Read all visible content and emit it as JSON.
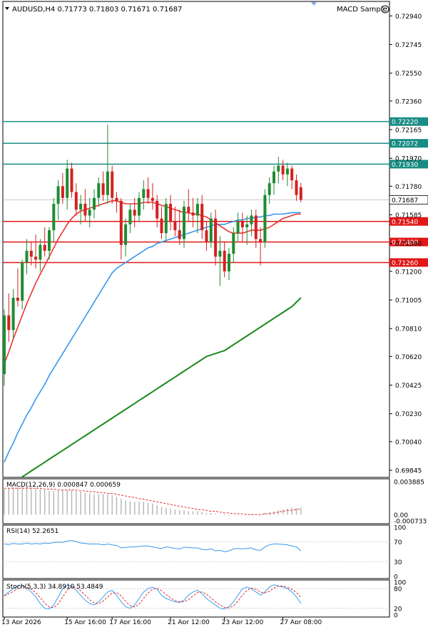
{
  "header": {
    "symbol_line": "AUDUSD,H4  0.71773 0.71803 0.71671 0.71687",
    "expert_label": "MACD Sample",
    "expert_icon": "smiley-face-icon"
  },
  "colors": {
    "bull": "#1e8c32",
    "bear": "#d42020",
    "ma_fast": "#ee3030",
    "ma_mid": "#3a96ee",
    "ma_slow": "#1a8a1a",
    "level_teal": "#198c84",
    "level_red": "#e01818",
    "grid": "#d8d8d8",
    "axis": "#000000",
    "macd_hist": "#b4b4b4",
    "macd_signal": "#e03030",
    "rsi_line": "#3a96ee",
    "stoch_main": "#3aa0ee",
    "stoch_signal": "#e03030"
  },
  "chart_data": [
    {
      "type": "candlestick",
      "title": "AUDUSD,H4",
      "ohlc_readout": [
        "0.71773",
        "0.71803",
        "0.71671",
        "0.71687"
      ],
      "ylim": [
        0.69845,
        0.7299
      ],
      "y_ticks": [
        "0.72940",
        "0.72745",
        "0.72550",
        "0.72360",
        "0.72165",
        "0.71970",
        "0.71780",
        "0.71585",
        "0.71390",
        "0.71200",
        "0.71005",
        "0.70810",
        "0.70620",
        "0.70425",
        "0.70230",
        "0.70040",
        "0.69845"
      ],
      "price_levels": [
        {
          "label": "0.72220",
          "value": 0.7222,
          "color": "teal"
        },
        {
          "label": "0.72072",
          "value": 0.72072,
          "color": "teal"
        },
        {
          "label": "0.71930",
          "value": 0.7193,
          "color": "teal"
        },
        {
          "label": "0.71540",
          "value": 0.7154,
          "color": "red"
        },
        {
          "label": "0.71400",
          "value": 0.714,
          "color": "red"
        },
        {
          "label": "0.71260",
          "value": 0.7126,
          "color": "red"
        }
      ],
      "current_price": {
        "label": "0.71687",
        "value": 0.71687
      },
      "x_labels": [
        "13 Apr 2026",
        "15 Apr 16:00",
        "17 Apr 16:00",
        "21 Apr 12:00",
        "23 Apr 12:00",
        "27 Apr 08:00"
      ],
      "x_label_bar_index": [
        0,
        14,
        24,
        37,
        49,
        62
      ],
      "candles": [
        [
          0.705,
          0.7094,
          0.7042,
          0.709
        ],
        [
          0.709,
          0.7105,
          0.7072,
          0.708
        ],
        [
          0.708,
          0.7108,
          0.7074,
          0.7102
        ],
        [
          0.7102,
          0.7122,
          0.7096,
          0.71
        ],
        [
          0.71,
          0.7128,
          0.7094,
          0.7126
        ],
        [
          0.7126,
          0.7142,
          0.7118,
          0.7134
        ],
        [
          0.7134,
          0.714,
          0.7124,
          0.713
        ],
        [
          0.713,
          0.7145,
          0.7122,
          0.7128
        ],
        [
          0.7128,
          0.7142,
          0.712,
          0.7138
        ],
        [
          0.7138,
          0.715,
          0.713,
          0.7134
        ],
        [
          0.7134,
          0.715,
          0.7128,
          0.7148
        ],
        [
          0.7148,
          0.717,
          0.714,
          0.7166
        ],
        [
          0.7166,
          0.7182,
          0.7155,
          0.7178
        ],
        [
          0.7178,
          0.7187,
          0.7166,
          0.717
        ],
        [
          0.717,
          0.7196,
          0.7162,
          0.719
        ],
        [
          0.719,
          0.7194,
          0.717,
          0.7174
        ],
        [
          0.7174,
          0.718,
          0.7158,
          0.7162
        ],
        [
          0.7162,
          0.7172,
          0.7152,
          0.7166
        ],
        [
          0.7166,
          0.7176,
          0.7154,
          0.7158
        ],
        [
          0.7158,
          0.717,
          0.715,
          0.7162
        ],
        [
          0.7162,
          0.7176,
          0.7156,
          0.717
        ],
        [
          0.717,
          0.7184,
          0.7164,
          0.718
        ],
        [
          0.718,
          0.7188,
          0.7168,
          0.7172
        ],
        [
          0.7172,
          0.722,
          0.7166,
          0.7188
        ],
        [
          0.7188,
          0.7192,
          0.7166,
          0.717
        ],
        [
          0.717,
          0.7174,
          0.716,
          0.7168
        ],
        [
          0.7168,
          0.717,
          0.7128,
          0.7138
        ],
        [
          0.7138,
          0.7156,
          0.713,
          0.7152
        ],
        [
          0.7152,
          0.7166,
          0.7146,
          0.7162
        ],
        [
          0.7162,
          0.717,
          0.715,
          0.7158
        ],
        [
          0.7158,
          0.7174,
          0.7154,
          0.717
        ],
        [
          0.717,
          0.7182,
          0.7162,
          0.7176
        ],
        [
          0.7176,
          0.7184,
          0.7166,
          0.717
        ],
        [
          0.717,
          0.718,
          0.7162,
          0.7168
        ],
        [
          0.7168,
          0.7172,
          0.715,
          0.7156
        ],
        [
          0.7156,
          0.7164,
          0.7142,
          0.7146
        ],
        [
          0.7146,
          0.717,
          0.714,
          0.7166
        ],
        [
          0.7166,
          0.7172,
          0.7148,
          0.7154
        ],
        [
          0.7154,
          0.7164,
          0.7144,
          0.7148
        ],
        [
          0.7148,
          0.7162,
          0.7138,
          0.7142
        ],
        [
          0.7142,
          0.7168,
          0.7136,
          0.7164
        ],
        [
          0.7164,
          0.7176,
          0.7154,
          0.716
        ],
        [
          0.716,
          0.717,
          0.715,
          0.7158
        ],
        [
          0.7158,
          0.717,
          0.7146,
          0.7166
        ],
        [
          0.7166,
          0.7172,
          0.7142,
          0.7148
        ],
        [
          0.7148,
          0.7154,
          0.7134,
          0.714
        ],
        [
          0.714,
          0.716,
          0.7136,
          0.7156
        ],
        [
          0.7156,
          0.7162,
          0.7124,
          0.713
        ],
        [
          0.713,
          0.7144,
          0.711,
          0.7134
        ],
        [
          0.7134,
          0.714,
          0.7116,
          0.712
        ],
        [
          0.712,
          0.7136,
          0.7114,
          0.7132
        ],
        [
          0.7132,
          0.715,
          0.7126,
          0.7146
        ],
        [
          0.7146,
          0.716,
          0.714,
          0.7154
        ],
        [
          0.7154,
          0.716,
          0.714,
          0.715
        ],
        [
          0.715,
          0.7158,
          0.7138,
          0.7152
        ],
        [
          0.7152,
          0.7162,
          0.7144,
          0.7158
        ],
        [
          0.7158,
          0.7162,
          0.7136,
          0.7142
        ],
        [
          0.7142,
          0.715,
          0.7124,
          0.714
        ],
        [
          0.714,
          0.7176,
          0.7136,
          0.7172
        ],
        [
          0.7172,
          0.7184,
          0.7166,
          0.718
        ],
        [
          0.718,
          0.7192,
          0.7172,
          0.7188
        ],
        [
          0.7188,
          0.7198,
          0.718,
          0.7192
        ],
        [
          0.7192,
          0.7196,
          0.7182,
          0.7186
        ],
        [
          0.7186,
          0.7194,
          0.7178,
          0.719
        ],
        [
          0.719,
          0.7192,
          0.7176,
          0.7182
        ],
        [
          0.7182,
          0.7186,
          0.7168,
          0.7172
        ],
        [
          0.71773,
          0.71803,
          0.71671,
          0.71687
        ]
      ],
      "ma_fast": [
        0.7057,
        0.7065,
        0.7074,
        0.7082,
        0.709,
        0.7098,
        0.7105,
        0.7112,
        0.7118,
        0.7124,
        0.713,
        0.7136,
        0.7142,
        0.7147,
        0.7152,
        0.7156,
        0.7159,
        0.7161,
        0.7162,
        0.7163,
        0.7164,
        0.7165,
        0.7166,
        0.7167,
        0.7168,
        0.7168,
        0.7167,
        0.7166,
        0.7166,
        0.7166,
        0.7166,
        0.7167,
        0.7167,
        0.7167,
        0.7166,
        0.7165,
        0.7164,
        0.7163,
        0.7162,
        0.7161,
        0.716,
        0.716,
        0.7159,
        0.7159,
        0.7158,
        0.7157,
        0.7155,
        0.7153,
        0.7151,
        0.7149,
        0.7147,
        0.7146,
        0.7146,
        0.7146,
        0.7147,
        0.7148,
        0.7148,
        0.7148,
        0.7149,
        0.715,
        0.7152,
        0.7154,
        0.7156,
        0.7157,
        0.7158,
        0.7159,
        0.7159
      ],
      "ma_mid": [
        0.699,
        0.6997,
        0.7003,
        0.701,
        0.7016,
        0.7022,
        0.7027,
        0.7033,
        0.7038,
        0.7043,
        0.7049,
        0.7054,
        0.7059,
        0.7064,
        0.7069,
        0.7074,
        0.7079,
        0.7084,
        0.7089,
        0.7094,
        0.7099,
        0.7104,
        0.7109,
        0.7114,
        0.7119,
        0.7122,
        0.7124,
        0.7126,
        0.7128,
        0.713,
        0.7132,
        0.7134,
        0.7136,
        0.7137,
        0.7139,
        0.714,
        0.7141,
        0.7142,
        0.7143,
        0.7144,
        0.7145,
        0.7146,
        0.7147,
        0.7148,
        0.7149,
        0.715,
        0.7151,
        0.7152,
        0.7152,
        0.7152,
        0.7153,
        0.7154,
        0.7155,
        0.7155,
        0.7156,
        0.7156,
        0.7157,
        0.7157,
        0.7158,
        0.7158,
        0.7159,
        0.7159,
        0.7159,
        0.71595,
        0.716,
        0.716,
        0.716
      ],
      "ma_slow": [
        0.697,
        0.6973,
        0.6976,
        0.6978,
        0.698,
        0.6982,
        0.6984,
        0.6986,
        0.6988,
        0.699,
        0.6992,
        0.6994,
        0.6996,
        0.6998,
        0.7,
        0.7002,
        0.7004,
        0.7006,
        0.7008,
        0.701,
        0.7012,
        0.7014,
        0.7016,
        0.7018,
        0.702,
        0.7022,
        0.7024,
        0.7026,
        0.7028,
        0.703,
        0.7032,
        0.7034,
        0.7036,
        0.7038,
        0.704,
        0.7042,
        0.7044,
        0.7046,
        0.7048,
        0.705,
        0.7052,
        0.7054,
        0.7056,
        0.7058,
        0.706,
        0.7062,
        0.7063,
        0.7064,
        0.7065,
        0.7066,
        0.7068,
        0.707,
        0.7072,
        0.7074,
        0.7076,
        0.7078,
        0.708,
        0.7082,
        0.7084,
        0.7086,
        0.7088,
        0.709,
        0.7092,
        0.7094,
        0.7096,
        0.7099,
        0.7102
      ]
    },
    {
      "type": "bar",
      "title": "MACD(12,26,9) 0.000847 0.000659",
      "y_ticks": [
        "0.003885",
        "0.00",
        "-0.000733"
      ],
      "ylim": [
        -0.000733,
        0.003885
      ],
      "macd_hist": [
        0.003,
        0.0031,
        0.0032,
        0.0032,
        0.0033,
        0.0033,
        0.0032,
        0.0031,
        0.003,
        0.0029,
        0.0028,
        0.0028,
        0.0028,
        0.0029,
        0.0029,
        0.0029,
        0.0028,
        0.0027,
        0.0026,
        0.0025,
        0.0024,
        0.0024,
        0.0024,
        0.0024,
        0.0023,
        0.0021,
        0.0019,
        0.0017,
        0.0016,
        0.0015,
        0.0015,
        0.0015,
        0.0014,
        0.0013,
        0.0011,
        0.0009,
        0.0008,
        0.0007,
        0.0006,
        0.0005,
        0.0005,
        0.0004,
        0.0004,
        0.0004,
        0.0003,
        0.0002,
        0.0002,
        0.0001,
        0.0,
        -0.0001,
        -0.0001,
        0.0,
        0.0,
        0.0,
        0.0,
        0.0001,
        0.0,
        0.0,
        0.0002,
        0.0003,
        0.0004,
        0.0005,
        0.0006,
        0.0007,
        0.0008,
        0.0008,
        0.000847
      ],
      "macd_signal": [
        0.0031,
        0.0031,
        0.0031,
        0.0031,
        0.0031,
        0.0031,
        0.0031,
        0.0031,
        0.0031,
        0.003,
        0.003,
        0.003,
        0.0029,
        0.0029,
        0.0029,
        0.0029,
        0.0029,
        0.0028,
        0.0028,
        0.0027,
        0.0027,
        0.0026,
        0.0026,
        0.0025,
        0.0025,
        0.0024,
        0.0023,
        0.0022,
        0.0021,
        0.002,
        0.0019,
        0.0018,
        0.0017,
        0.0016,
        0.0015,
        0.0014,
        0.0013,
        0.0012,
        0.0011,
        0.001,
        0.0009,
        0.0008,
        0.0007,
        0.0006,
        0.0006,
        0.0005,
        0.0004,
        0.0004,
        0.0003,
        0.0002,
        0.0002,
        0.0001,
        0.0001,
        0.0001,
        0.0,
        0.0,
        0.0,
        0.0,
        0.0001,
        0.0001,
        0.0002,
        0.0003,
        0.0004,
        0.0005,
        0.0005,
        0.0006,
        0.000659
      ]
    },
    {
      "type": "line",
      "title": "RSI(14) 52.2651",
      "y_ticks": [
        "100",
        "70",
        "30",
        "0"
      ],
      "ylim": [
        0,
        100
      ],
      "rsi": [
        66,
        65,
        67,
        66,
        66,
        68,
        66,
        67,
        66,
        68,
        67,
        69,
        70,
        69,
        72,
        73,
        71,
        68,
        67,
        66,
        66,
        66,
        64,
        66,
        64,
        63,
        58,
        59,
        60,
        60,
        61,
        62,
        62,
        60,
        58,
        57,
        60,
        59,
        57,
        56,
        59,
        59,
        58,
        58,
        55,
        54,
        56,
        52,
        53,
        50,
        52,
        56,
        57,
        56,
        57,
        58,
        54,
        53,
        60,
        64,
        66,
        66,
        65,
        64,
        62,
        60,
        52
      ]
    },
    {
      "type": "line",
      "title": "Stoch(5,3,3) 34.8910 53.4849",
      "y_ticks": [
        "100",
        "80",
        "20",
        "0"
      ],
      "ylim": [
        0,
        100
      ],
      "stoch_main": [
        60,
        70,
        80,
        88,
        90,
        82,
        70,
        55,
        35,
        20,
        18,
        30,
        55,
        80,
        90,
        88,
        75,
        60,
        45,
        35,
        30,
        40,
        55,
        70,
        75,
        60,
        40,
        25,
        20,
        30,
        50,
        70,
        80,
        85,
        78,
        60,
        50,
        45,
        40,
        38,
        45,
        60,
        70,
        75,
        65,
        50,
        40,
        30,
        20,
        18,
        25,
        40,
        60,
        80,
        85,
        80,
        70,
        60,
        70,
        85,
        92,
        88,
        85,
        80,
        70,
        55,
        35
      ],
      "stoch_signal": [
        58,
        64,
        72,
        80,
        86,
        85,
        78,
        68,
        52,
        36,
        24,
        22,
        34,
        55,
        75,
        86,
        84,
        74,
        60,
        46,
        36,
        34,
        42,
        55,
        66,
        68,
        58,
        42,
        28,
        24,
        33,
        50,
        67,
        78,
        81,
        74,
        62,
        52,
        44,
        40,
        40,
        46,
        58,
        68,
        70,
        63,
        52,
        40,
        30,
        23,
        21,
        28,
        42,
        60,
        75,
        82,
        78,
        70,
        67,
        72,
        82,
        88,
        88,
        84,
        78,
        68,
        53
      ]
    }
  ]
}
